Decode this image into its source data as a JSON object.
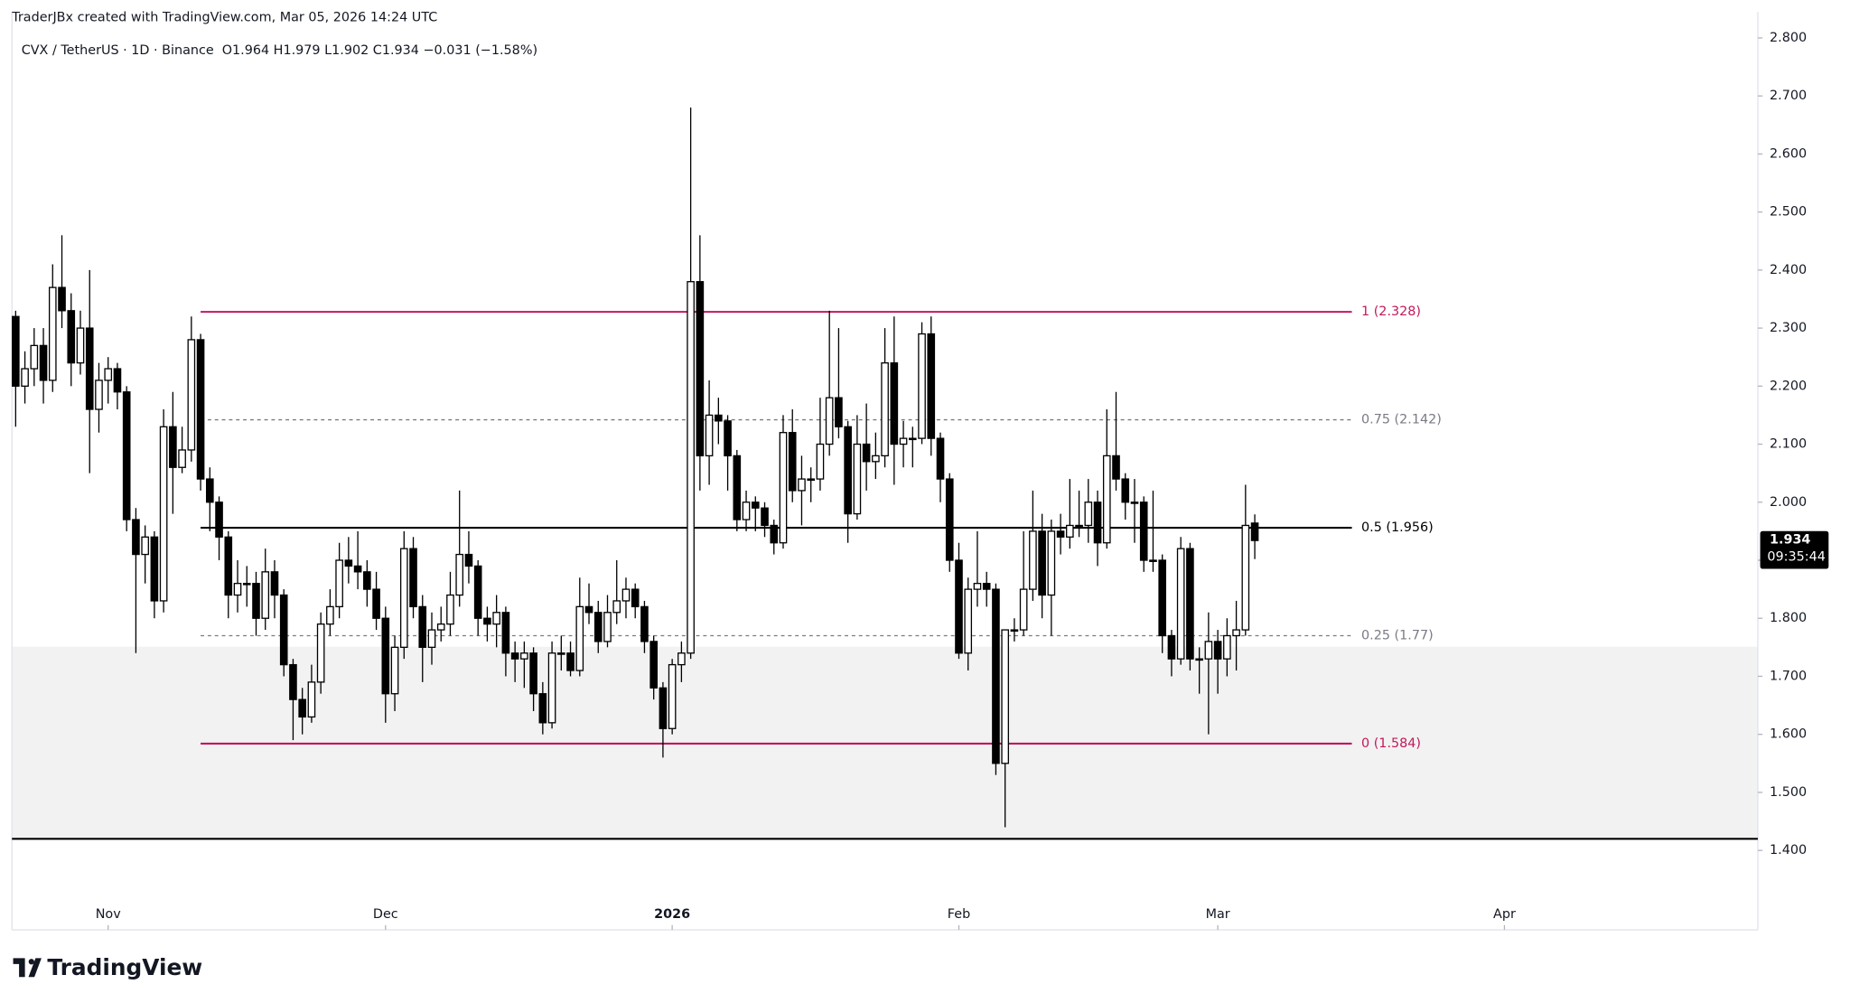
{
  "chart_data": {
    "type": "candlestick",
    "credit": "TraderJBx created with TradingView.com, Mar 05, 2026 14:24 UTC",
    "symbol": "CVX / TetherUS · 1D · Binance",
    "ohlc_text": "O1.964 H1.979 L1.902 C1.934 −0.031 (−1.58%)",
    "brand": "TradingView",
    "countdown": "09:35:44",
    "up_color": "#ffffff",
    "down_color": "#000000",
    "outline_color": "#000000",
    "ylim": [
      1.316,
      2.845
    ],
    "yticks": [
      {
        "value": 2.8,
        "label": "2.800"
      },
      {
        "value": 2.7,
        "label": "2.700"
      },
      {
        "value": 2.6,
        "label": "2.600"
      },
      {
        "value": 2.5,
        "label": "2.500"
      },
      {
        "value": 2.4,
        "label": "2.400"
      },
      {
        "value": 2.3,
        "label": "2.300"
      },
      {
        "value": 2.2,
        "label": "2.200"
      },
      {
        "value": 2.1,
        "label": "2.100"
      },
      {
        "value": 2.0,
        "label": "2.000"
      },
      {
        "value": 1.9,
        "label": "1.900"
      },
      {
        "value": 1.8,
        "label": "1.800"
      },
      {
        "value": 1.7,
        "label": "1.700"
      },
      {
        "value": 1.6,
        "label": "1.600"
      },
      {
        "value": 1.5,
        "label": "1.500"
      },
      {
        "value": 1.4,
        "label": "1.400"
      }
    ],
    "xlim": [
      -0.4,
      188.4
    ],
    "xticks": [
      {
        "value": 10,
        "label": "Nov"
      },
      {
        "value": 40,
        "label": "Dec"
      },
      {
        "value": 71,
        "label": "2026"
      },
      {
        "value": 102,
        "label": "Feb"
      },
      {
        "value": 130,
        "label": "Mar"
      },
      {
        "value": 161,
        "label": "Apr"
      }
    ],
    "zone": [
      1.751,
      1.422
    ],
    "zone_color": "#f2f2f2",
    "support_line": 1.42,
    "levels": [
      {
        "price": 2.328,
        "label": "1 (2.328)",
        "color": "#c2185b",
        "dashed": false
      },
      {
        "price": 2.142,
        "label": "0.75 (2.142)",
        "color": "#787b86",
        "dashed": true
      },
      {
        "price": 1.956,
        "label": "0.5 (1.956)",
        "color": "#000000",
        "dashed": false
      },
      {
        "price": 1.77,
        "label": "0.25 (1.77)",
        "color": "#787b86",
        "dashed": true
      },
      {
        "price": 1.584,
        "label": "0 (1.584)",
        "color": "#c2185b",
        "dashed": false
      }
    ],
    "candles": [
      [
        2.32,
        2.33,
        2.13,
        2.2
      ],
      [
        2.2,
        2.26,
        2.17,
        2.23
      ],
      [
        2.23,
        2.3,
        2.2,
        2.27
      ],
      [
        2.27,
        2.3,
        2.17,
        2.21
      ],
      [
        2.21,
        2.41,
        2.19,
        2.37
      ],
      [
        2.37,
        2.46,
        2.3,
        2.33
      ],
      [
        2.33,
        2.36,
        2.2,
        2.24
      ],
      [
        2.24,
        2.33,
        2.22,
        2.3
      ],
      [
        2.3,
        2.4,
        2.05,
        2.16
      ],
      [
        2.16,
        2.24,
        2.12,
        2.21
      ],
      [
        2.21,
        2.25,
        2.17,
        2.23
      ],
      [
        2.23,
        2.24,
        2.16,
        2.19
      ],
      [
        2.19,
        2.2,
        1.95,
        1.97
      ],
      [
        1.97,
        1.99,
        1.74,
        1.91
      ],
      [
        1.91,
        1.96,
        1.86,
        1.94
      ],
      [
        1.94,
        1.95,
        1.8,
        1.83
      ],
      [
        1.83,
        2.16,
        1.81,
        2.13
      ],
      [
        2.13,
        2.19,
        1.98,
        2.06
      ],
      [
        2.06,
        2.13,
        2.05,
        2.09
      ],
      [
        2.09,
        2.32,
        2.07,
        2.28
      ],
      [
        2.28,
        2.29,
        2.02,
        2.04
      ],
      [
        2.04,
        2.06,
        1.95,
        2.0
      ],
      [
        2.0,
        2.01,
        1.9,
        1.94
      ],
      [
        1.94,
        1.95,
        1.8,
        1.84
      ],
      [
        1.84,
        1.9,
        1.81,
        1.86
      ],
      [
        1.86,
        1.89,
        1.82,
        1.86
      ],
      [
        1.86,
        1.88,
        1.77,
        1.8
      ],
      [
        1.8,
        1.92,
        1.78,
        1.88
      ],
      [
        1.88,
        1.9,
        1.8,
        1.84
      ],
      [
        1.84,
        1.85,
        1.7,
        1.72
      ],
      [
        1.72,
        1.73,
        1.59,
        1.66
      ],
      [
        1.66,
        1.68,
        1.6,
        1.63
      ],
      [
        1.63,
        1.72,
        1.62,
        1.69
      ],
      [
        1.69,
        1.81,
        1.67,
        1.79
      ],
      [
        1.79,
        1.85,
        1.77,
        1.82
      ],
      [
        1.82,
        1.93,
        1.8,
        1.9
      ],
      [
        1.9,
        1.94,
        1.86,
        1.89
      ],
      [
        1.89,
        1.95,
        1.85,
        1.88
      ],
      [
        1.88,
        1.9,
        1.82,
        1.85
      ],
      [
        1.85,
        1.88,
        1.78,
        1.8
      ],
      [
        1.8,
        1.82,
        1.62,
        1.67
      ],
      [
        1.67,
        1.77,
        1.64,
        1.75
      ],
      [
        1.75,
        1.95,
        1.73,
        1.92
      ],
      [
        1.92,
        1.94,
        1.8,
        1.82
      ],
      [
        1.82,
        1.84,
        1.69,
        1.75
      ],
      [
        1.75,
        1.81,
        1.72,
        1.78
      ],
      [
        1.78,
        1.82,
        1.76,
        1.79
      ],
      [
        1.79,
        1.88,
        1.77,
        1.84
      ],
      [
        1.84,
        2.02,
        1.82,
        1.91
      ],
      [
        1.91,
        1.95,
        1.86,
        1.89
      ],
      [
        1.89,
        1.9,
        1.77,
        1.8
      ],
      [
        1.8,
        1.82,
        1.76,
        1.79
      ],
      [
        1.79,
        1.84,
        1.75,
        1.81
      ],
      [
        1.81,
        1.82,
        1.7,
        1.74
      ],
      [
        1.74,
        1.76,
        1.69,
        1.73
      ],
      [
        1.73,
        1.76,
        1.68,
        1.74
      ],
      [
        1.74,
        1.75,
        1.64,
        1.67
      ],
      [
        1.67,
        1.69,
        1.6,
        1.62
      ],
      [
        1.62,
        1.76,
        1.61,
        1.74
      ],
      [
        1.74,
        1.77,
        1.71,
        1.74
      ],
      [
        1.74,
        1.76,
        1.7,
        1.71
      ],
      [
        1.71,
        1.87,
        1.7,
        1.82
      ],
      [
        1.82,
        1.86,
        1.79,
        1.81
      ],
      [
        1.81,
        1.83,
        1.74,
        1.76
      ],
      [
        1.76,
        1.84,
        1.75,
        1.81
      ],
      [
        1.81,
        1.9,
        1.79,
        1.83
      ],
      [
        1.83,
        1.87,
        1.8,
        1.85
      ],
      [
        1.85,
        1.86,
        1.8,
        1.82
      ],
      [
        1.82,
        1.83,
        1.74,
        1.76
      ],
      [
        1.76,
        1.77,
        1.66,
        1.68
      ],
      [
        1.68,
        1.69,
        1.56,
        1.61
      ],
      [
        1.61,
        1.73,
        1.6,
        1.72
      ],
      [
        1.72,
        1.76,
        1.69,
        1.74
      ],
      [
        1.74,
        2.68,
        1.73,
        2.38
      ],
      [
        2.38,
        2.46,
        2.02,
        2.08
      ],
      [
        2.08,
        2.21,
        2.03,
        2.15
      ],
      [
        2.15,
        2.18,
        2.1,
        2.14
      ],
      [
        2.14,
        2.15,
        2.02,
        2.08
      ],
      [
        2.08,
        2.09,
        1.95,
        1.97
      ],
      [
        1.97,
        2.02,
        1.95,
        2.0
      ],
      [
        2.0,
        2.01,
        1.95,
        1.99
      ],
      [
        1.99,
        2.0,
        1.94,
        1.96
      ],
      [
        1.96,
        1.97,
        1.91,
        1.93
      ],
      [
        1.93,
        2.15,
        1.92,
        2.12
      ],
      [
        2.12,
        2.16,
        2.0,
        2.02
      ],
      [
        2.02,
        2.08,
        1.96,
        2.04
      ],
      [
        2.04,
        2.06,
        2.0,
        2.04
      ],
      [
        2.04,
        2.18,
        2.02,
        2.1
      ],
      [
        2.1,
        2.33,
        2.08,
        2.18
      ],
      [
        2.18,
        2.3,
        2.11,
        2.13
      ],
      [
        2.13,
        2.14,
        1.93,
        1.98
      ],
      [
        1.98,
        2.15,
        1.97,
        2.1
      ],
      [
        2.1,
        2.17,
        2.02,
        2.07
      ],
      [
        2.07,
        2.12,
        2.04,
        2.08
      ],
      [
        2.08,
        2.3,
        2.06,
        2.24
      ],
      [
        2.24,
        2.32,
        2.03,
        2.1
      ],
      [
        2.1,
        2.14,
        2.06,
        2.11
      ],
      [
        2.11,
        2.13,
        2.06,
        2.11
      ],
      [
        2.11,
        2.31,
        2.1,
        2.29
      ],
      [
        2.29,
        2.32,
        2.08,
        2.11
      ],
      [
        2.11,
        2.12,
        2.0,
        2.04
      ],
      [
        2.04,
        2.05,
        1.88,
        1.9
      ],
      [
        1.9,
        1.93,
        1.73,
        1.74
      ],
      [
        1.74,
        1.87,
        1.71,
        1.85
      ],
      [
        1.85,
        1.95,
        1.82,
        1.86
      ],
      [
        1.86,
        1.88,
        1.82,
        1.85
      ],
      [
        1.85,
        1.86,
        1.53,
        1.55
      ],
      [
        1.55,
        1.78,
        1.44,
        1.78
      ],
      [
        1.78,
        1.8,
        1.76,
        1.78
      ],
      [
        1.78,
        1.95,
        1.77,
        1.85
      ],
      [
        1.85,
        2.02,
        1.83,
        1.95
      ],
      [
        1.95,
        1.98,
        1.8,
        1.84
      ],
      [
        1.84,
        1.97,
        1.77,
        1.95
      ],
      [
        1.95,
        1.98,
        1.91,
        1.94
      ],
      [
        1.94,
        2.04,
        1.92,
        1.96
      ],
      [
        1.96,
        2.02,
        1.94,
        1.96
      ],
      [
        1.96,
        2.04,
        1.93,
        2.0
      ],
      [
        2.0,
        2.02,
        1.89,
        1.93
      ],
      [
        1.93,
        2.16,
        1.92,
        2.08
      ],
      [
        2.08,
        2.19,
        2.02,
        2.04
      ],
      [
        2.04,
        2.05,
        1.97,
        2.0
      ],
      [
        2.0,
        2.04,
        1.93,
        2.0
      ],
      [
        2.0,
        2.01,
        1.88,
        1.9
      ],
      [
        1.9,
        2.02,
        1.88,
        1.9
      ],
      [
        1.9,
        1.91,
        1.74,
        1.77
      ],
      [
        1.77,
        1.78,
        1.7,
        1.73
      ],
      [
        1.73,
        1.94,
        1.72,
        1.92
      ],
      [
        1.92,
        1.93,
        1.71,
        1.73
      ],
      [
        1.73,
        1.75,
        1.67,
        1.73
      ],
      [
        1.73,
        1.81,
        1.6,
        1.76
      ],
      [
        1.76,
        1.78,
        1.67,
        1.73
      ],
      [
        1.73,
        1.8,
        1.7,
        1.77
      ],
      [
        1.77,
        1.83,
        1.71,
        1.78
      ],
      [
        1.78,
        2.03,
        1.77,
        1.96
      ],
      [
        1.964,
        1.979,
        1.902,
        1.934
      ]
    ]
  }
}
